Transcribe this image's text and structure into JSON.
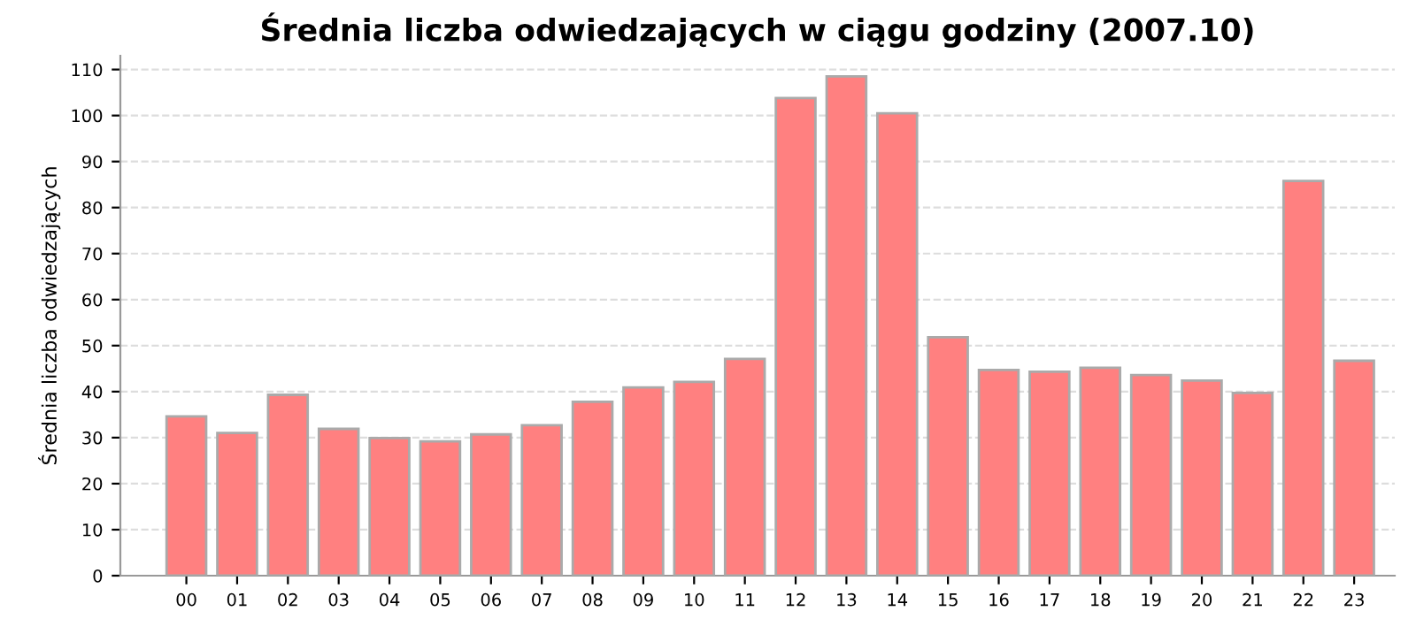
{
  "chart_data": {
    "type": "bar",
    "title": "Średnia liczba odwiedzających w ciągu godziny (2007.10)",
    "ylabel": "Średnia liczba odwiedzających",
    "categories": [
      "00",
      "01",
      "02",
      "03",
      "04",
      "05",
      "06",
      "07",
      "08",
      "09",
      "10",
      "11",
      "12",
      "13",
      "14",
      "15",
      "16",
      "17",
      "18",
      "19",
      "20",
      "21",
      "22",
      "23"
    ],
    "values": [
      34.6,
      31.0,
      39.3,
      31.9,
      29.9,
      29.2,
      30.7,
      32.7,
      37.8,
      40.9,
      42.1,
      47.1,
      103.8,
      108.5,
      100.5,
      51.8,
      44.7,
      44.3,
      45.2,
      43.6,
      42.4,
      39.7,
      85.8,
      46.7
    ],
    "color": "#ff8080",
    "ylim": [
      0,
      113
    ],
    "yticks": [
      0,
      10,
      20,
      30,
      40,
      50,
      60,
      70,
      80,
      90,
      100,
      110
    ],
    "grid": "y"
  }
}
